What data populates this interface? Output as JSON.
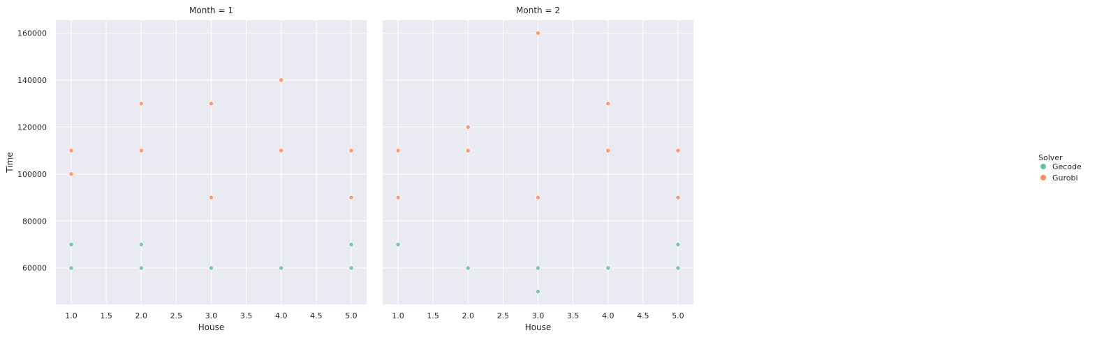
{
  "chart_data": {
    "type": "scatter",
    "xlabel": "House",
    "ylabel": "Time",
    "xlim": [
      0.78,
      5.22
    ],
    "ylim": [
      44500,
      165500
    ],
    "xticks": [
      1.0,
      1.5,
      2.0,
      2.5,
      3.0,
      3.5,
      4.0,
      4.5,
      5.0
    ],
    "yticks": [
      60000,
      80000,
      100000,
      120000,
      140000,
      160000
    ],
    "grid": true,
    "legend": {
      "title": "Solver",
      "position": "right",
      "entries": [
        "Gecode",
        "Gurobi"
      ]
    },
    "colors": {
      "Gecode": "#66c2a5",
      "Gurobi": "#fc8d62"
    },
    "panels": [
      {
        "title": "Month = 1",
        "series": [
          {
            "name": "Gecode",
            "x": [
              1,
              1,
              2,
              2,
              3,
              4,
              5,
              5
            ],
            "y": [
              70000,
              60000,
              70000,
              60000,
              60000,
              60000,
              70000,
              60000
            ]
          },
          {
            "name": "Gurobi",
            "x": [
              1,
              1,
              2,
              2,
              3,
              3,
              4,
              4,
              5,
              5
            ],
            "y": [
              110000,
              100000,
              130000,
              110000,
              130000,
              90000,
              140000,
              110000,
              110000,
              90000
            ]
          }
        ]
      },
      {
        "title": "Month = 2",
        "series": [
          {
            "name": "Gecode",
            "x": [
              1,
              2,
              3,
              3,
              4,
              5,
              5
            ],
            "y": [
              70000,
              60000,
              60000,
              50000,
              60000,
              70000,
              60000
            ]
          },
          {
            "name": "Gurobi",
            "x": [
              1,
              1,
              2,
              2,
              3,
              3,
              4,
              4,
              5,
              5
            ],
            "y": [
              110000,
              90000,
              120000,
              110000,
              160000,
              90000,
              130000,
              110000,
              110000,
              90000
            ]
          }
        ]
      }
    ]
  }
}
